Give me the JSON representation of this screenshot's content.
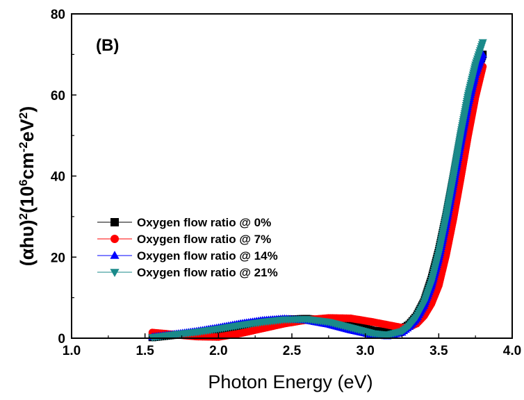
{
  "chart_data": {
    "type": "scatter",
    "panel_label": "(B)",
    "xlabel": "Photon Energy (eV)",
    "ylabel": {
      "prefix": "(αhυ)",
      "sup1": "2",
      "open": "(10",
      "sup2": "6",
      "unit1": "cm",
      "sup3": "-2",
      "unit2": "eV",
      "sup4": "2",
      "close": ")"
    },
    "xlim": [
      1.0,
      4.0
    ],
    "ylim": [
      0,
      80
    ],
    "x_ticks": [
      "1.0",
      "1.5",
      "2.0",
      "2.5",
      "3.0",
      "3.5",
      "4.0"
    ],
    "y_ticks": [
      "0",
      "20",
      "40",
      "60",
      "80"
    ],
    "grid": false,
    "legend_position": "left-middle",
    "series": [
      {
        "name": "Oxygen flow ratio @ 0%",
        "color": "#000000",
        "marker": "square",
        "x": [
          1.55,
          1.7,
          1.85,
          2.0,
          2.15,
          2.3,
          2.45,
          2.6,
          2.75,
          2.9,
          3.05,
          3.15,
          3.25,
          3.3,
          3.35,
          3.4,
          3.45,
          3.5,
          3.55,
          3.6,
          3.65,
          3.7,
          3.75,
          3.8
        ],
        "y": [
          0.2,
          0.8,
          1.2,
          2.0,
          3.0,
          4.0,
          4.6,
          4.8,
          4.3,
          3.3,
          1.9,
          1.5,
          2.2,
          3.4,
          5.5,
          9.0,
          14.5,
          21.5,
          30.0,
          39.5,
          49.5,
          58.5,
          65.0,
          70.0
        ]
      },
      {
        "name": "Oxygen flow ratio @ 7%",
        "color": "#ff0000",
        "marker": "circle",
        "x": [
          1.55,
          1.7,
          1.85,
          2.0,
          2.15,
          2.3,
          2.45,
          2.6,
          2.75,
          2.9,
          3.05,
          3.15,
          3.25,
          3.3,
          3.35,
          3.4,
          3.45,
          3.5,
          3.55,
          3.6,
          3.65,
          3.7,
          3.75,
          3.8
        ],
        "y": [
          1.4,
          0.9,
          0.4,
          0.3,
          1.2,
          2.4,
          3.6,
          4.5,
          5.0,
          4.9,
          4.0,
          3.3,
          2.6,
          2.8,
          3.6,
          5.5,
          8.5,
          13.0,
          20.5,
          29.5,
          39.5,
          50.0,
          59.5,
          67.0
        ]
      },
      {
        "name": "Oxygen flow ratio @ 14%",
        "color": "#0000ff",
        "marker": "triangle-up",
        "x": [
          1.55,
          1.7,
          1.85,
          2.0,
          2.15,
          2.3,
          2.45,
          2.6,
          2.75,
          2.9,
          3.05,
          3.15,
          3.25,
          3.3,
          3.35,
          3.4,
          3.45,
          3.5,
          3.55,
          3.6,
          3.65,
          3.7,
          3.75,
          3.8
        ],
        "y": [
          0.3,
          1.0,
          1.7,
          2.6,
          3.6,
          4.4,
          4.8,
          4.4,
          3.4,
          2.0,
          0.8,
          0.5,
          1.4,
          2.8,
          4.8,
          8.0,
          12.8,
          19.5,
          28.0,
          37.8,
          48.0,
          57.5,
          65.0,
          70.0
        ]
      },
      {
        "name": "Oxygen flow ratio @ 21%",
        "color": "#1a8a8a",
        "marker": "triangle-down",
        "x": [
          1.55,
          1.7,
          1.85,
          2.0,
          2.15,
          2.3,
          2.45,
          2.6,
          2.75,
          2.9,
          3.05,
          3.15,
          3.25,
          3.3,
          3.35,
          3.4,
          3.45,
          3.5,
          3.55,
          3.6,
          3.65,
          3.7,
          3.75,
          3.8
        ],
        "y": [
          0.2,
          0.9,
          1.5,
          2.3,
          3.2,
          4.0,
          4.6,
          4.7,
          4.0,
          2.6,
          1.2,
          0.8,
          1.7,
          3.1,
          5.3,
          8.7,
          13.8,
          21.0,
          30.0,
          40.0,
          50.5,
          60.0,
          67.5,
          73.0
        ]
      }
    ]
  }
}
